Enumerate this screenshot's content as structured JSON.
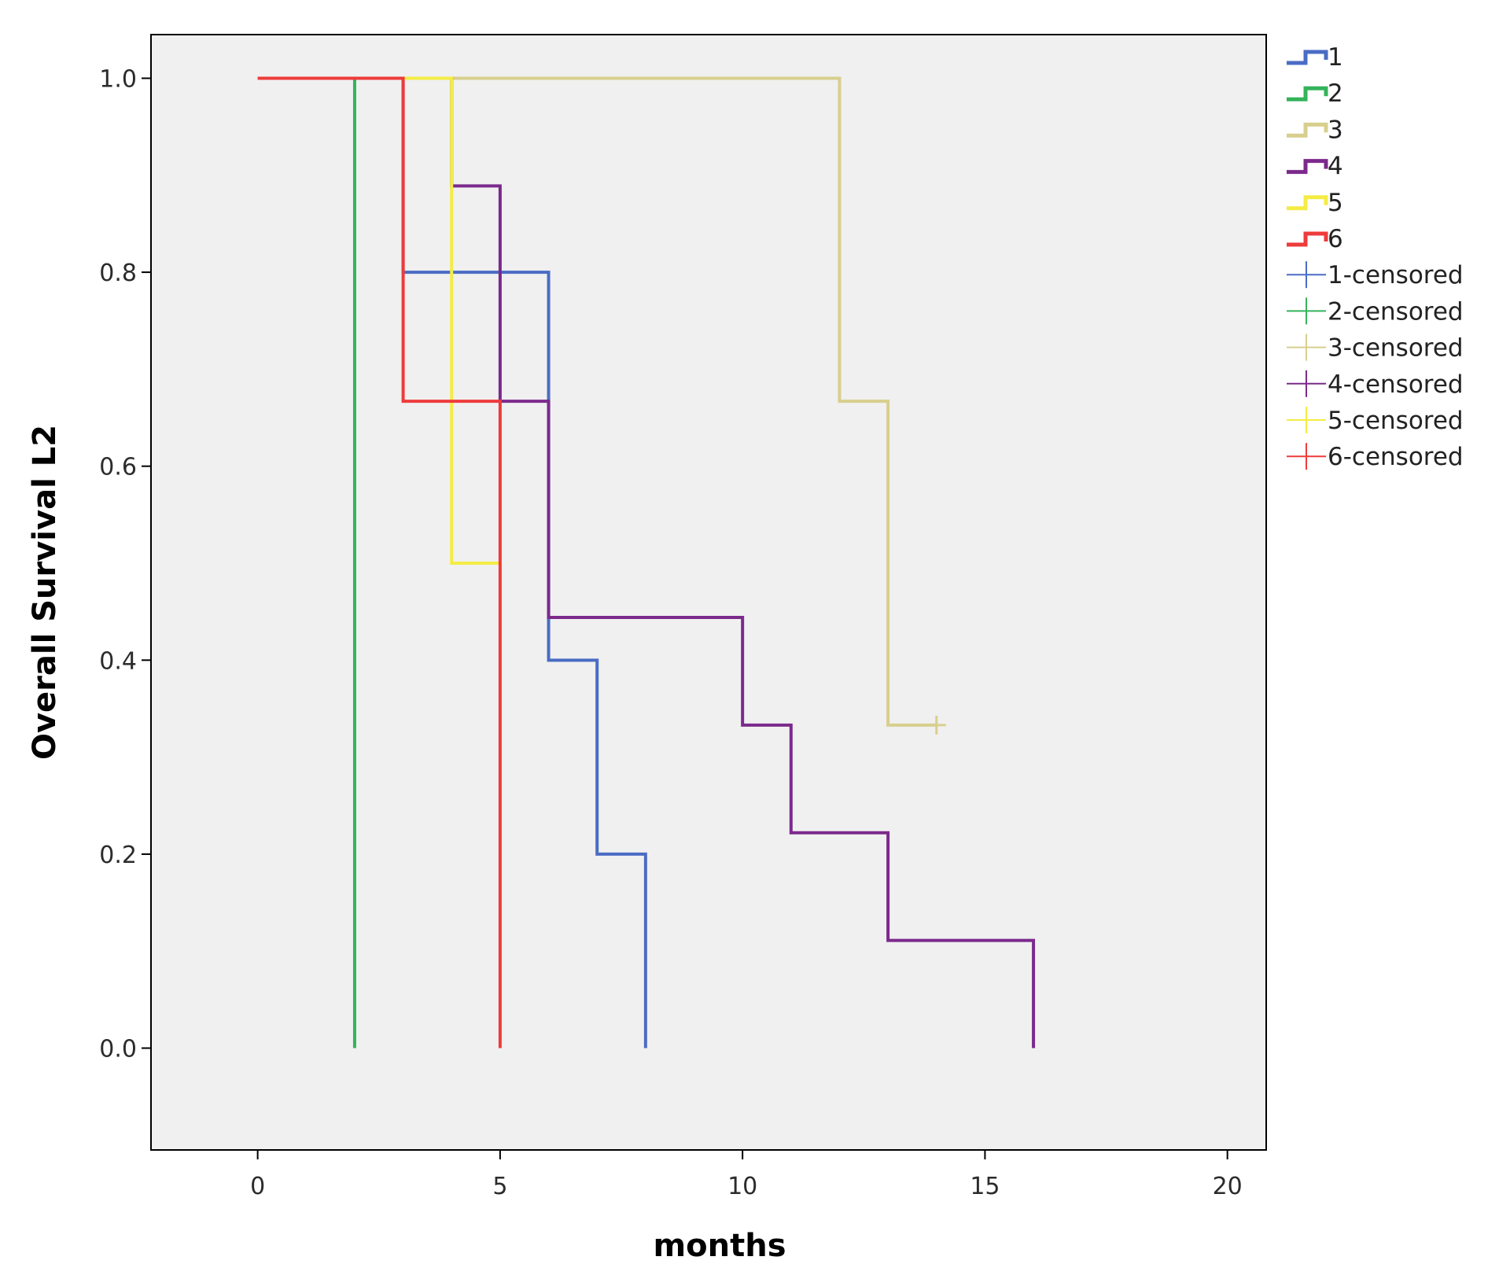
{
  "chart_data": {
    "type": "line",
    "subtype": "kaplan-meier-step",
    "title": "",
    "xlabel": "months",
    "ylabel": "Overall Survival L2",
    "xlim": [
      -2.2,
      20.8
    ],
    "ylim": [
      -0.105,
      1.045
    ],
    "xticks": [
      0,
      5,
      10,
      15,
      20
    ],
    "yticks": [
      0.0,
      0.2,
      0.4,
      0.6,
      0.8,
      1.0
    ],
    "ytick_labels": [
      "0.0",
      "0.2",
      "0.4",
      "0.6",
      "0.8",
      "1.0"
    ],
    "grid": false,
    "legend_position": "right",
    "series": [
      {
        "name": "1",
        "color": "#4a6cc4",
        "steps": [
          [
            0,
            1.0
          ],
          [
            3,
            0.8
          ],
          [
            6,
            0.4
          ],
          [
            7,
            0.2
          ],
          [
            8,
            0.0
          ]
        ],
        "censored": []
      },
      {
        "name": "2",
        "color": "#34b35a",
        "steps": [
          [
            0,
            1.0
          ],
          [
            2,
            0.0
          ]
        ],
        "censored": []
      },
      {
        "name": "3",
        "color": "#d8cf8e",
        "steps": [
          [
            0,
            1.0
          ],
          [
            12,
            0.667
          ],
          [
            13,
            0.333
          ]
        ],
        "end_x": 14,
        "censored": [
          [
            14,
            0.333
          ]
        ]
      },
      {
        "name": "4",
        "color": "#7b2a8c",
        "steps": [
          [
            0,
            1.0
          ],
          [
            4,
            0.889
          ],
          [
            5,
            0.667
          ],
          [
            6,
            0.444
          ],
          [
            10,
            0.333
          ],
          [
            11,
            0.222
          ],
          [
            13,
            0.111
          ],
          [
            16,
            0.0
          ]
        ],
        "censored": []
      },
      {
        "name": "5",
        "color": "#f4ec45",
        "steps": [
          [
            0,
            1.0
          ],
          [
            4,
            0.5
          ]
        ],
        "end_x": 5,
        "censored": []
      },
      {
        "name": "6",
        "color": "#ee3b3b",
        "steps": [
          [
            0,
            1.0
          ],
          [
            3,
            0.667
          ],
          [
            5,
            0.0
          ]
        ],
        "censored": []
      }
    ],
    "legend": [
      {
        "label": "1",
        "kind": "line",
        "color": "#4a6cc4"
      },
      {
        "label": "2",
        "kind": "line",
        "color": "#34b35a"
      },
      {
        "label": "3",
        "kind": "line",
        "color": "#d8cf8e"
      },
      {
        "label": "4",
        "kind": "line",
        "color": "#7b2a8c"
      },
      {
        "label": "5",
        "kind": "line",
        "color": "#f4ec45"
      },
      {
        "label": "6",
        "kind": "line",
        "color": "#ee3b3b"
      },
      {
        "label": "1-censored",
        "kind": "cross",
        "color": "#4a6cc4"
      },
      {
        "label": "2-censored",
        "kind": "cross",
        "color": "#34b35a"
      },
      {
        "label": "3-censored",
        "kind": "cross",
        "color": "#d8cf8e"
      },
      {
        "label": "4-censored",
        "kind": "cross",
        "color": "#7b2a8c"
      },
      {
        "label": "5-censored",
        "kind": "cross",
        "color": "#f4ec45"
      },
      {
        "label": "6-censored",
        "kind": "cross",
        "color": "#ee3b3b"
      }
    ]
  }
}
